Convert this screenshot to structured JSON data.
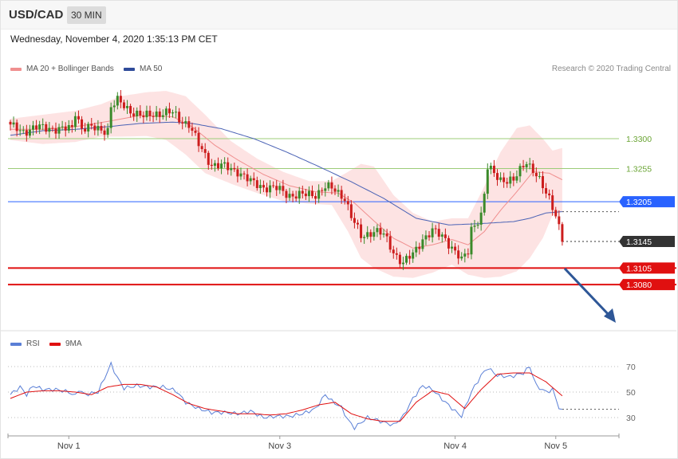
{
  "header": {
    "symbol": "USD/CAD",
    "timeframe": "30 MIN"
  },
  "timestamp": "Wednesday, November 4, 2020 1:35:13 PM CET",
  "legend": {
    "ma_label": "MA 20 + Bollinger Bands",
    "ma50_label": "MA 50",
    "rsi_label": "RSI",
    "ma9_label": "9MA"
  },
  "credit": "Research © 2020 Trading Central",
  "colors": {
    "up": "#3a8a2a",
    "down": "#cc1d1d",
    "band": "#fcdada",
    "ma20": "#f08f8f",
    "ma50": "#4a62b5",
    "resistance": "#9ccc78",
    "pivot": "#2962ff",
    "support": "#e01010",
    "last": "#333333",
    "rsi": "#5a7fd6",
    "rsi_ma": "#e01010"
  },
  "chart_data": [
    {
      "type": "candlestick",
      "ylim": [
        1.3072,
        1.3352
      ],
      "x_ticks": [
        {
          "label": "Nov 1",
          "index": 18
        },
        {
          "label": "Nov 3",
          "index": 83
        },
        {
          "label": "Nov 4",
          "index": 137
        },
        {
          "label": "Nov 5",
          "index": 168
        }
      ],
      "levels": [
        {
          "value": 1.33,
          "label": "1.3300",
          "kind": "resistance"
        },
        {
          "value": 1.3255,
          "label": "1.3255",
          "kind": "resistance"
        },
        {
          "value": 1.3205,
          "label": "1.3205",
          "kind": "pivot"
        },
        {
          "value": 1.3145,
          "label": "1.3145",
          "kind": "last"
        },
        {
          "value": 1.3105,
          "label": "1.3105",
          "kind": "support"
        },
        {
          "value": 1.308,
          "label": "1.3080",
          "kind": "support"
        }
      ],
      "anchors": [
        [
          0,
          1.3318
        ],
        [
          4,
          1.3312
        ],
        [
          8,
          1.3316
        ],
        [
          12,
          1.3317
        ],
        [
          16,
          1.3313
        ],
        [
          19,
          1.3316
        ],
        [
          20,
          1.3342
        ],
        [
          22,
          1.3316
        ],
        [
          26,
          1.3315
        ],
        [
          30,
          1.3314
        ],
        [
          31,
          1.3348
        ],
        [
          33,
          1.3356
        ],
        [
          37,
          1.3343
        ],
        [
          41,
          1.3332
        ],
        [
          45,
          1.3339
        ],
        [
          50,
          1.3338
        ],
        [
          52,
          1.333
        ],
        [
          55,
          1.3322
        ],
        [
          58,
          1.329
        ],
        [
          60,
          1.3275
        ],
        [
          62,
          1.3262
        ],
        [
          66,
          1.3257
        ],
        [
          70,
          1.3252
        ],
        [
          74,
          1.3234
        ],
        [
          78,
          1.3228
        ],
        [
          82,
          1.3224
        ],
        [
          86,
          1.3216
        ],
        [
          90,
          1.3214
        ],
        [
          94,
          1.3217
        ],
        [
          97,
          1.3227
        ],
        [
          100,
          1.3222
        ],
        [
          103,
          1.3212
        ],
        [
          105,
          1.3182
        ],
        [
          108,
          1.3152
        ],
        [
          112,
          1.3162
        ],
        [
          115,
          1.3154
        ],
        [
          118,
          1.313
        ],
        [
          121,
          1.3112
        ],
        [
          124,
          1.3125
        ],
        [
          127,
          1.315
        ],
        [
          130,
          1.316
        ],
        [
          134,
          1.315
        ],
        [
          137,
          1.313
        ],
        [
          139,
          1.3115
        ],
        [
          141,
          1.313
        ],
        [
          142,
          1.3165
        ],
        [
          145,
          1.3185
        ],
        [
          146,
          1.3215
        ],
        [
          147,
          1.3255
        ],
        [
          151,
          1.324
        ],
        [
          155,
          1.3235
        ],
        [
          157,
          1.3252
        ],
        [
          159,
          1.3268
        ],
        [
          162,
          1.3245
        ],
        [
          164,
          1.3225
        ],
        [
          166,
          1.321
        ],
        [
          168,
          1.3188
        ],
        [
          170,
          1.3148
        ]
      ],
      "rsi_axis": {
        "ylim": [
          15,
          80
        ],
        "ticks": [
          70,
          50,
          30
        ]
      },
      "rsi_anchors": [
        [
          0,
          48
        ],
        [
          3,
          54
        ],
        [
          5,
          48
        ],
        [
          7,
          55
        ],
        [
          10,
          52
        ],
        [
          14,
          52
        ],
        [
          18,
          50
        ],
        [
          20,
          47
        ],
        [
          21,
          52
        ],
        [
          23,
          48
        ],
        [
          27,
          50
        ],
        [
          31,
          72
        ],
        [
          33,
          61
        ],
        [
          35,
          53
        ],
        [
          39,
          55
        ],
        [
          43,
          54
        ],
        [
          47,
          54
        ],
        [
          51,
          51
        ],
        [
          54,
          42
        ],
        [
          58,
          37
        ],
        [
          62,
          34
        ],
        [
          66,
          34
        ],
        [
          70,
          33
        ],
        [
          74,
          35
        ],
        [
          78,
          30
        ],
        [
          82,
          31
        ],
        [
          86,
          31
        ],
        [
          90,
          33
        ],
        [
          94,
          37
        ],
        [
          97,
          48
        ],
        [
          99,
          43
        ],
        [
          102,
          38
        ],
        [
          104,
          28
        ],
        [
          106,
          22
        ],
        [
          110,
          30
        ],
        [
          113,
          28
        ],
        [
          118,
          24
        ],
        [
          121,
          31
        ],
        [
          124,
          45
        ],
        [
          127,
          55
        ],
        [
          130,
          52
        ],
        [
          134,
          42
        ],
        [
          137,
          35
        ],
        [
          139,
          31
        ],
        [
          142,
          50
        ],
        [
          145,
          63
        ],
        [
          147,
          69
        ],
        [
          150,
          63
        ],
        [
          154,
          62
        ],
        [
          158,
          65
        ],
        [
          160,
          70
        ],
        [
          162,
          55
        ],
        [
          165,
          50
        ],
        [
          167,
          52
        ],
        [
          169,
          38
        ],
        [
          170,
          35
        ]
      ],
      "rsi_ma_anchors": [
        [
          0,
          45
        ],
        [
          5,
          50
        ],
        [
          10,
          51
        ],
        [
          15,
          51
        ],
        [
          20,
          50
        ],
        [
          25,
          48
        ],
        [
          30,
          54
        ],
        [
          35,
          56
        ],
        [
          40,
          56
        ],
        [
          45,
          54
        ],
        [
          50,
          48
        ],
        [
          55,
          41
        ],
        [
          60,
          37
        ],
        [
          65,
          35
        ],
        [
          70,
          33
        ],
        [
          75,
          33
        ],
        [
          80,
          32
        ],
        [
          85,
          33
        ],
        [
          90,
          36
        ],
        [
          95,
          40
        ],
        [
          100,
          42
        ],
        [
          105,
          33
        ],
        [
          110,
          29
        ],
        [
          115,
          27
        ],
        [
          120,
          27
        ],
        [
          125,
          42
        ],
        [
          130,
          51
        ],
        [
          135,
          48
        ],
        [
          140,
          37
        ],
        [
          145,
          52
        ],
        [
          150,
          64
        ],
        [
          155,
          65
        ],
        [
          160,
          65
        ],
        [
          165,
          58
        ],
        [
          170,
          47
        ]
      ],
      "ma50_anchors": [
        [
          0,
          1.3305
        ],
        [
          10,
          1.3312
        ],
        [
          20,
          1.3314
        ],
        [
          30,
          1.3318
        ],
        [
          40,
          1.3323
        ],
        [
          50,
          1.3325
        ],
        [
          56,
          1.3323
        ],
        [
          65,
          1.3315
        ],
        [
          75,
          1.33
        ],
        [
          85,
          1.328
        ],
        [
          95,
          1.3258
        ],
        [
          105,
          1.3235
        ],
        [
          115,
          1.321
        ],
        [
          125,
          1.318
        ],
        [
          135,
          1.317
        ],
        [
          145,
          1.3172
        ],
        [
          155,
          1.3175
        ],
        [
          160,
          1.318
        ],
        [
          165,
          1.3188
        ],
        [
          170,
          1.319
        ]
      ],
      "ma20_anchors": [
        [
          0,
          1.3314
        ],
        [
          10,
          1.3314
        ],
        [
          20,
          1.3318
        ],
        [
          30,
          1.3326
        ],
        [
          40,
          1.3335
        ],
        [
          50,
          1.3333
        ],
        [
          56,
          1.3318
        ],
        [
          63,
          1.329
        ],
        [
          70,
          1.3268
        ],
        [
          78,
          1.3246
        ],
        [
          86,
          1.3229
        ],
        [
          94,
          1.322
        ],
        [
          101,
          1.3218
        ],
        [
          106,
          1.3203
        ],
        [
          112,
          1.3176
        ],
        [
          118,
          1.315
        ],
        [
          124,
          1.3135
        ],
        [
          130,
          1.314
        ],
        [
          136,
          1.3148
        ],
        [
          141,
          1.314
        ],
        [
          146,
          1.316
        ],
        [
          151,
          1.3192
        ],
        [
          156,
          1.322
        ],
        [
          161,
          1.325
        ],
        [
          166,
          1.3248
        ],
        [
          170,
          1.3238
        ]
      ],
      "band_upper_anchors": [
        [
          0,
          1.333
        ],
        [
          10,
          1.3336
        ],
        [
          20,
          1.3342
        ],
        [
          28,
          1.3352
        ],
        [
          34,
          1.3364
        ],
        [
          42,
          1.337
        ],
        [
          48,
          1.3372
        ],
        [
          54,
          1.3364
        ],
        [
          60,
          1.3336
        ],
        [
          68,
          1.3296
        ],
        [
          76,
          1.327
        ],
        [
          84,
          1.325
        ],
        [
          92,
          1.3236
        ],
        [
          99,
          1.3236
        ],
        [
          104,
          1.325
        ],
        [
          108,
          1.3262
        ],
        [
          112,
          1.3258
        ],
        [
          118,
          1.3215
        ],
        [
          124,
          1.3188
        ],
        [
          130,
          1.3175
        ],
        [
          136,
          1.318
        ],
        [
          141,
          1.318
        ],
        [
          146,
          1.3228
        ],
        [
          151,
          1.328
        ],
        [
          156,
          1.3316
        ],
        [
          160,
          1.332
        ],
        [
          164,
          1.33
        ],
        [
          167,
          1.3282
        ],
        [
          170,
          1.3286
        ]
      ],
      "band_lower_anchors": [
        [
          0,
          1.3298
        ],
        [
          10,
          1.3292
        ],
        [
          20,
          1.3295
        ],
        [
          28,
          1.3303
        ],
        [
          34,
          1.3303
        ],
        [
          42,
          1.3304
        ],
        [
          48,
          1.3298
        ],
        [
          54,
          1.3276
        ],
        [
          60,
          1.3248
        ],
        [
          68,
          1.3232
        ],
        [
          76,
          1.3218
        ],
        [
          84,
          1.3206
        ],
        [
          92,
          1.3202
        ],
        [
          99,
          1.32
        ],
        [
          104,
          1.316
        ],
        [
          108,
          1.312
        ],
        [
          112,
          1.3105
        ],
        [
          118,
          1.3092
        ],
        [
          124,
          1.309
        ],
        [
          130,
          1.3098
        ],
        [
          136,
          1.311
        ],
        [
          141,
          1.3095
        ],
        [
          146,
          1.309
        ],
        [
          151,
          1.3092
        ],
        [
          156,
          1.31
        ],
        [
          160,
          1.312
        ],
        [
          164,
          1.315
        ],
        [
          167,
          1.3185
        ],
        [
          170,
          1.319
        ]
      ]
    }
  ]
}
